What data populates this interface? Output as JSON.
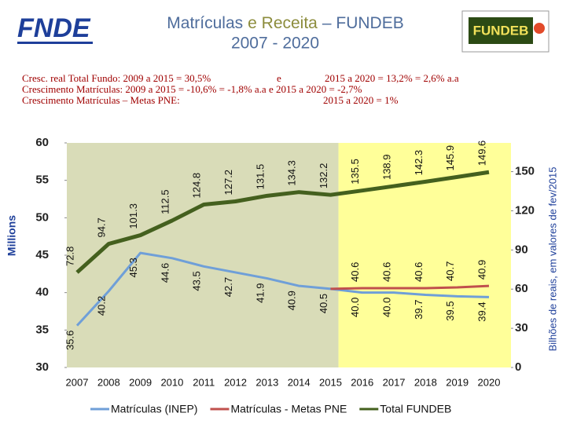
{
  "header": {
    "logo_left": "FNDE",
    "logo_right": "FUNDEB",
    "title_parts": [
      {
        "text": "Matrículas",
        "color": "#4f6d9c"
      },
      {
        "text": "e Receita",
        "color": "#8c8c3c"
      },
      {
        "text": "– FUNDEB",
        "color": "#4f6d9c"
      }
    ],
    "subtitle": "2007 - 2020"
  },
  "notes": [
    [
      "Cresc. real Total Fundo:  2009 a 2015 = 30,5%",
      "e",
      "2015 a 2020 = 13,2% = 2,6% a.a"
    ],
    [
      "Crescimento Matrículas: 2009 a 2015 = -10,6%  = -1,8% a.a  e  2015 a 2020 = -2,7%"
    ],
    [
      "Crescimento Matrículas – Metas PNE:",
      "2015 a 2020 = 1%"
    ]
  ],
  "chart_data": {
    "type": "line",
    "categories": [
      "2007",
      "2008",
      "2009",
      "2010",
      "2011",
      "2012",
      "2013",
      "2014",
      "2015",
      "2016",
      "2017",
      "2018",
      "2019",
      "2020"
    ],
    "ylabel": "Millions",
    "y2label": "Bilhões de reais, em valores de fev/2015",
    "ylim": [
      30,
      60
    ],
    "yticks": [
      30,
      35,
      40,
      45,
      50,
      55,
      60
    ],
    "y2lim": [
      0,
      172
    ],
    "y2ticks": [
      0,
      30,
      60,
      90,
      120,
      150
    ],
    "series": [
      {
        "name": "Matrículas (INEP)",
        "color": "#6f9fd8",
        "values": [
          35.6,
          40.2,
          45.3,
          44.6,
          43.5,
          42.7,
          41.9,
          40.9,
          40.5,
          40.0,
          40.0,
          39.7,
          39.5,
          39.4
        ],
        "value_labels": [
          "35.6",
          "40.2",
          "45.3",
          "44.6",
          "43.5",
          "42.7",
          "41.9",
          "40.9",
          "40.5",
          "40.0",
          "40.0",
          "39.7",
          "39.5",
          "39.4"
        ]
      },
      {
        "name": "Matrículas - Metas PNE",
        "color": "#c0504d",
        "values": [
          null,
          null,
          null,
          null,
          null,
          null,
          null,
          null,
          40.5,
          40.6,
          40.6,
          40.6,
          40.7,
          40.9
        ],
        "value_labels": [
          null,
          null,
          null,
          null,
          null,
          null,
          null,
          null,
          null,
          "40.6",
          "40.6",
          "40.6",
          "40.7",
          "40.9"
        ]
      },
      {
        "name": "Total FUNDEB",
        "color": "#44601e",
        "axis": "y2",
        "values": [
          72.8,
          94.7,
          101.3,
          112.5,
          124.8,
          127.2,
          131.5,
          134.3,
          132.2,
          135.5,
          138.9,
          142.3,
          145.9,
          149.6
        ],
        "value_labels": [
          "72.8",
          "94.7",
          "101.3",
          "112.5",
          "124.8",
          "127.2",
          "131.5",
          "134.3",
          "132.2",
          "135.5",
          "138.9",
          "142.3",
          "145.9",
          "149.6"
        ]
      }
    ]
  }
}
